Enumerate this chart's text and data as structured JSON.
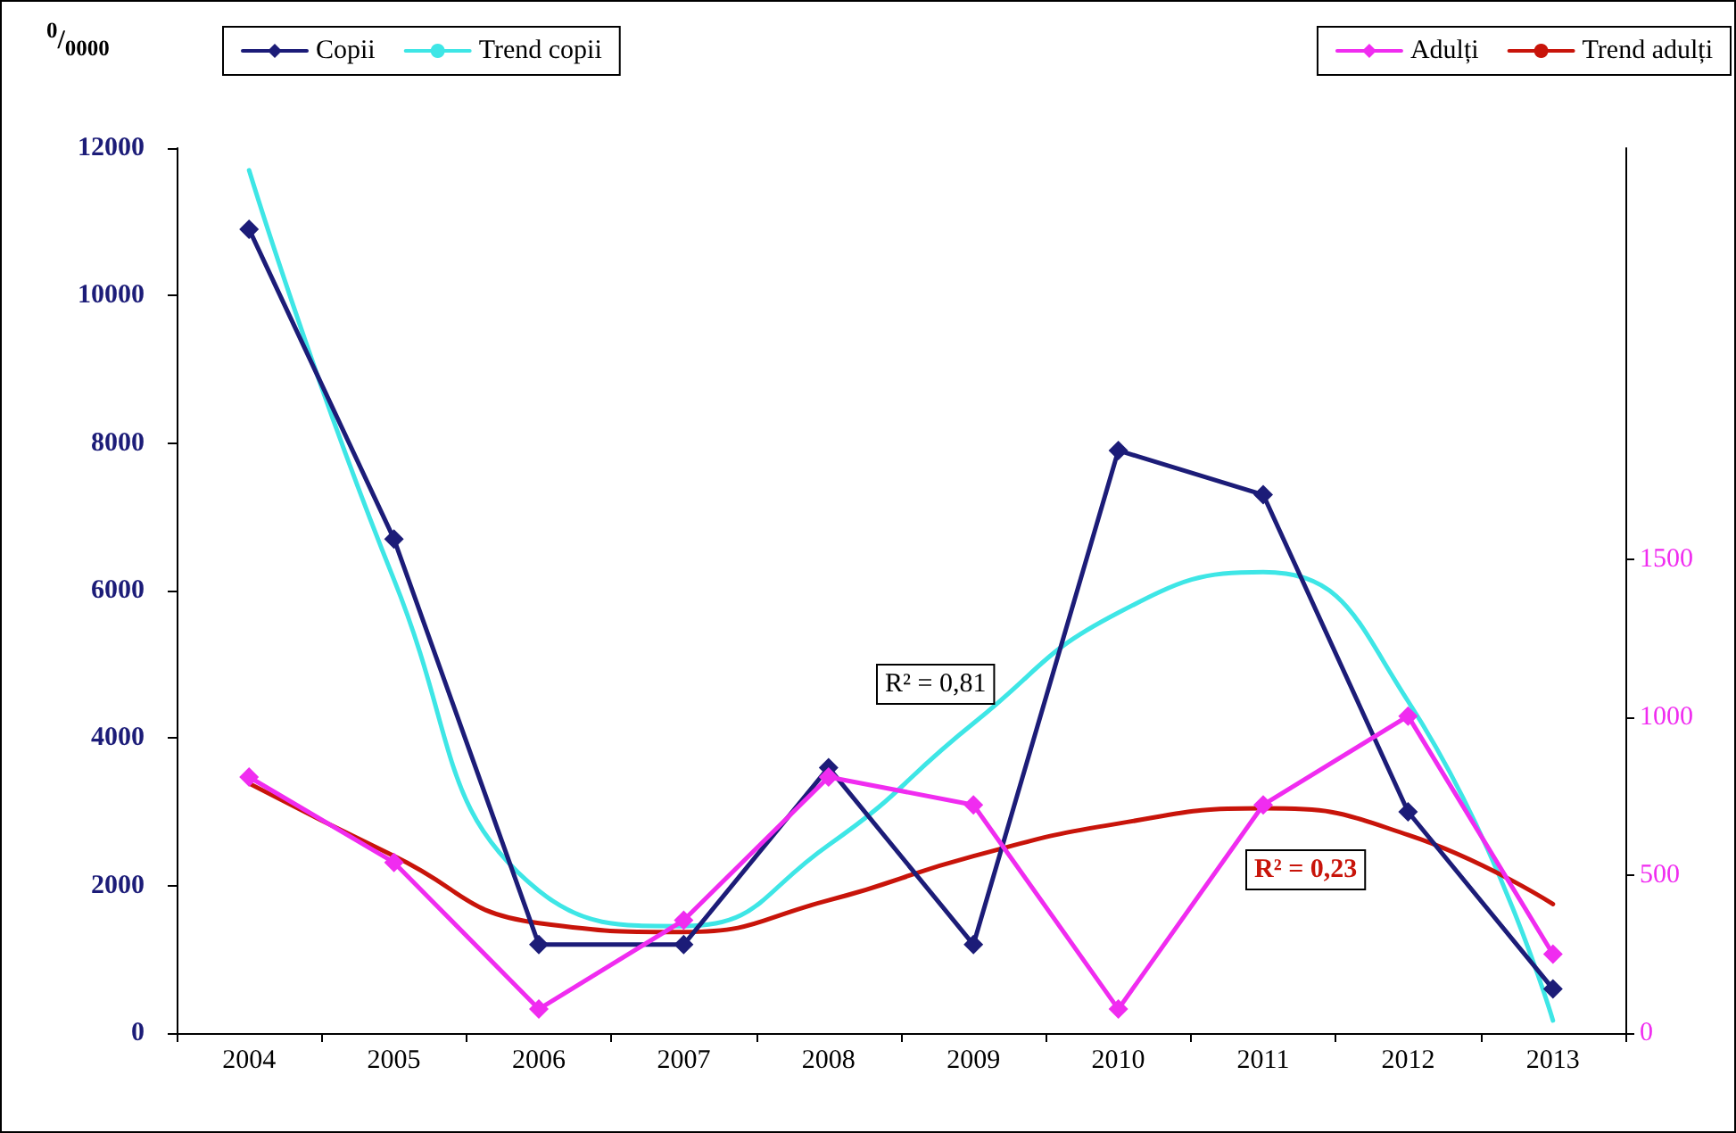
{
  "chart_data": {
    "type": "line",
    "ylabel": "$^{0}$/$_{0000}$",
    "categories": [
      "2004",
      "2005",
      "2006",
      "2007",
      "2008",
      "2009",
      "2010",
      "2011",
      "2012",
      "2013"
    ],
    "series": [
      {
        "name": "Copii",
        "color": "#1c1c78",
        "marker": "diamond",
        "values": [
          10900,
          6700,
          1200,
          1200,
          3600,
          1200,
          7900,
          7300,
          3000,
          600
        ]
      },
      {
        "name": "Trend copii",
        "color": "#3ee6e6",
        "marker": "none",
        "values": [
          11700,
          6150,
          1930,
          1450,
          2550,
          4200,
          5700,
          6250,
          4500,
          170
        ]
      },
      {
        "name": "Adulți",
        "color": "#f02cf0",
        "marker": "diamond",
        "axis": "y2",
        "values": [
          810,
          540,
          76,
          357,
          810,
          722,
          76,
          722,
          1003,
          250
        ]
      },
      {
        "name": "Trend adulți",
        "color": "#c8140a",
        "marker": "none",
        "axis": "y2",
        "values": [
          790,
          560,
          348,
          320,
          420,
          560,
          663,
          711,
          627,
          408
        ]
      }
    ],
    "ylim": [
      0,
      12000
    ],
    "yticks": [
      0,
      2000,
      4000,
      6000,
      8000,
      10000,
      12000
    ],
    "y2lim": [
      0,
      2800
    ],
    "y2ticks": [
      0,
      500,
      1000,
      1500
    ],
    "annotations": [
      "R² = 0,81",
      "R² = 0,23"
    ],
    "legend": "top",
    "grid": false
  }
}
